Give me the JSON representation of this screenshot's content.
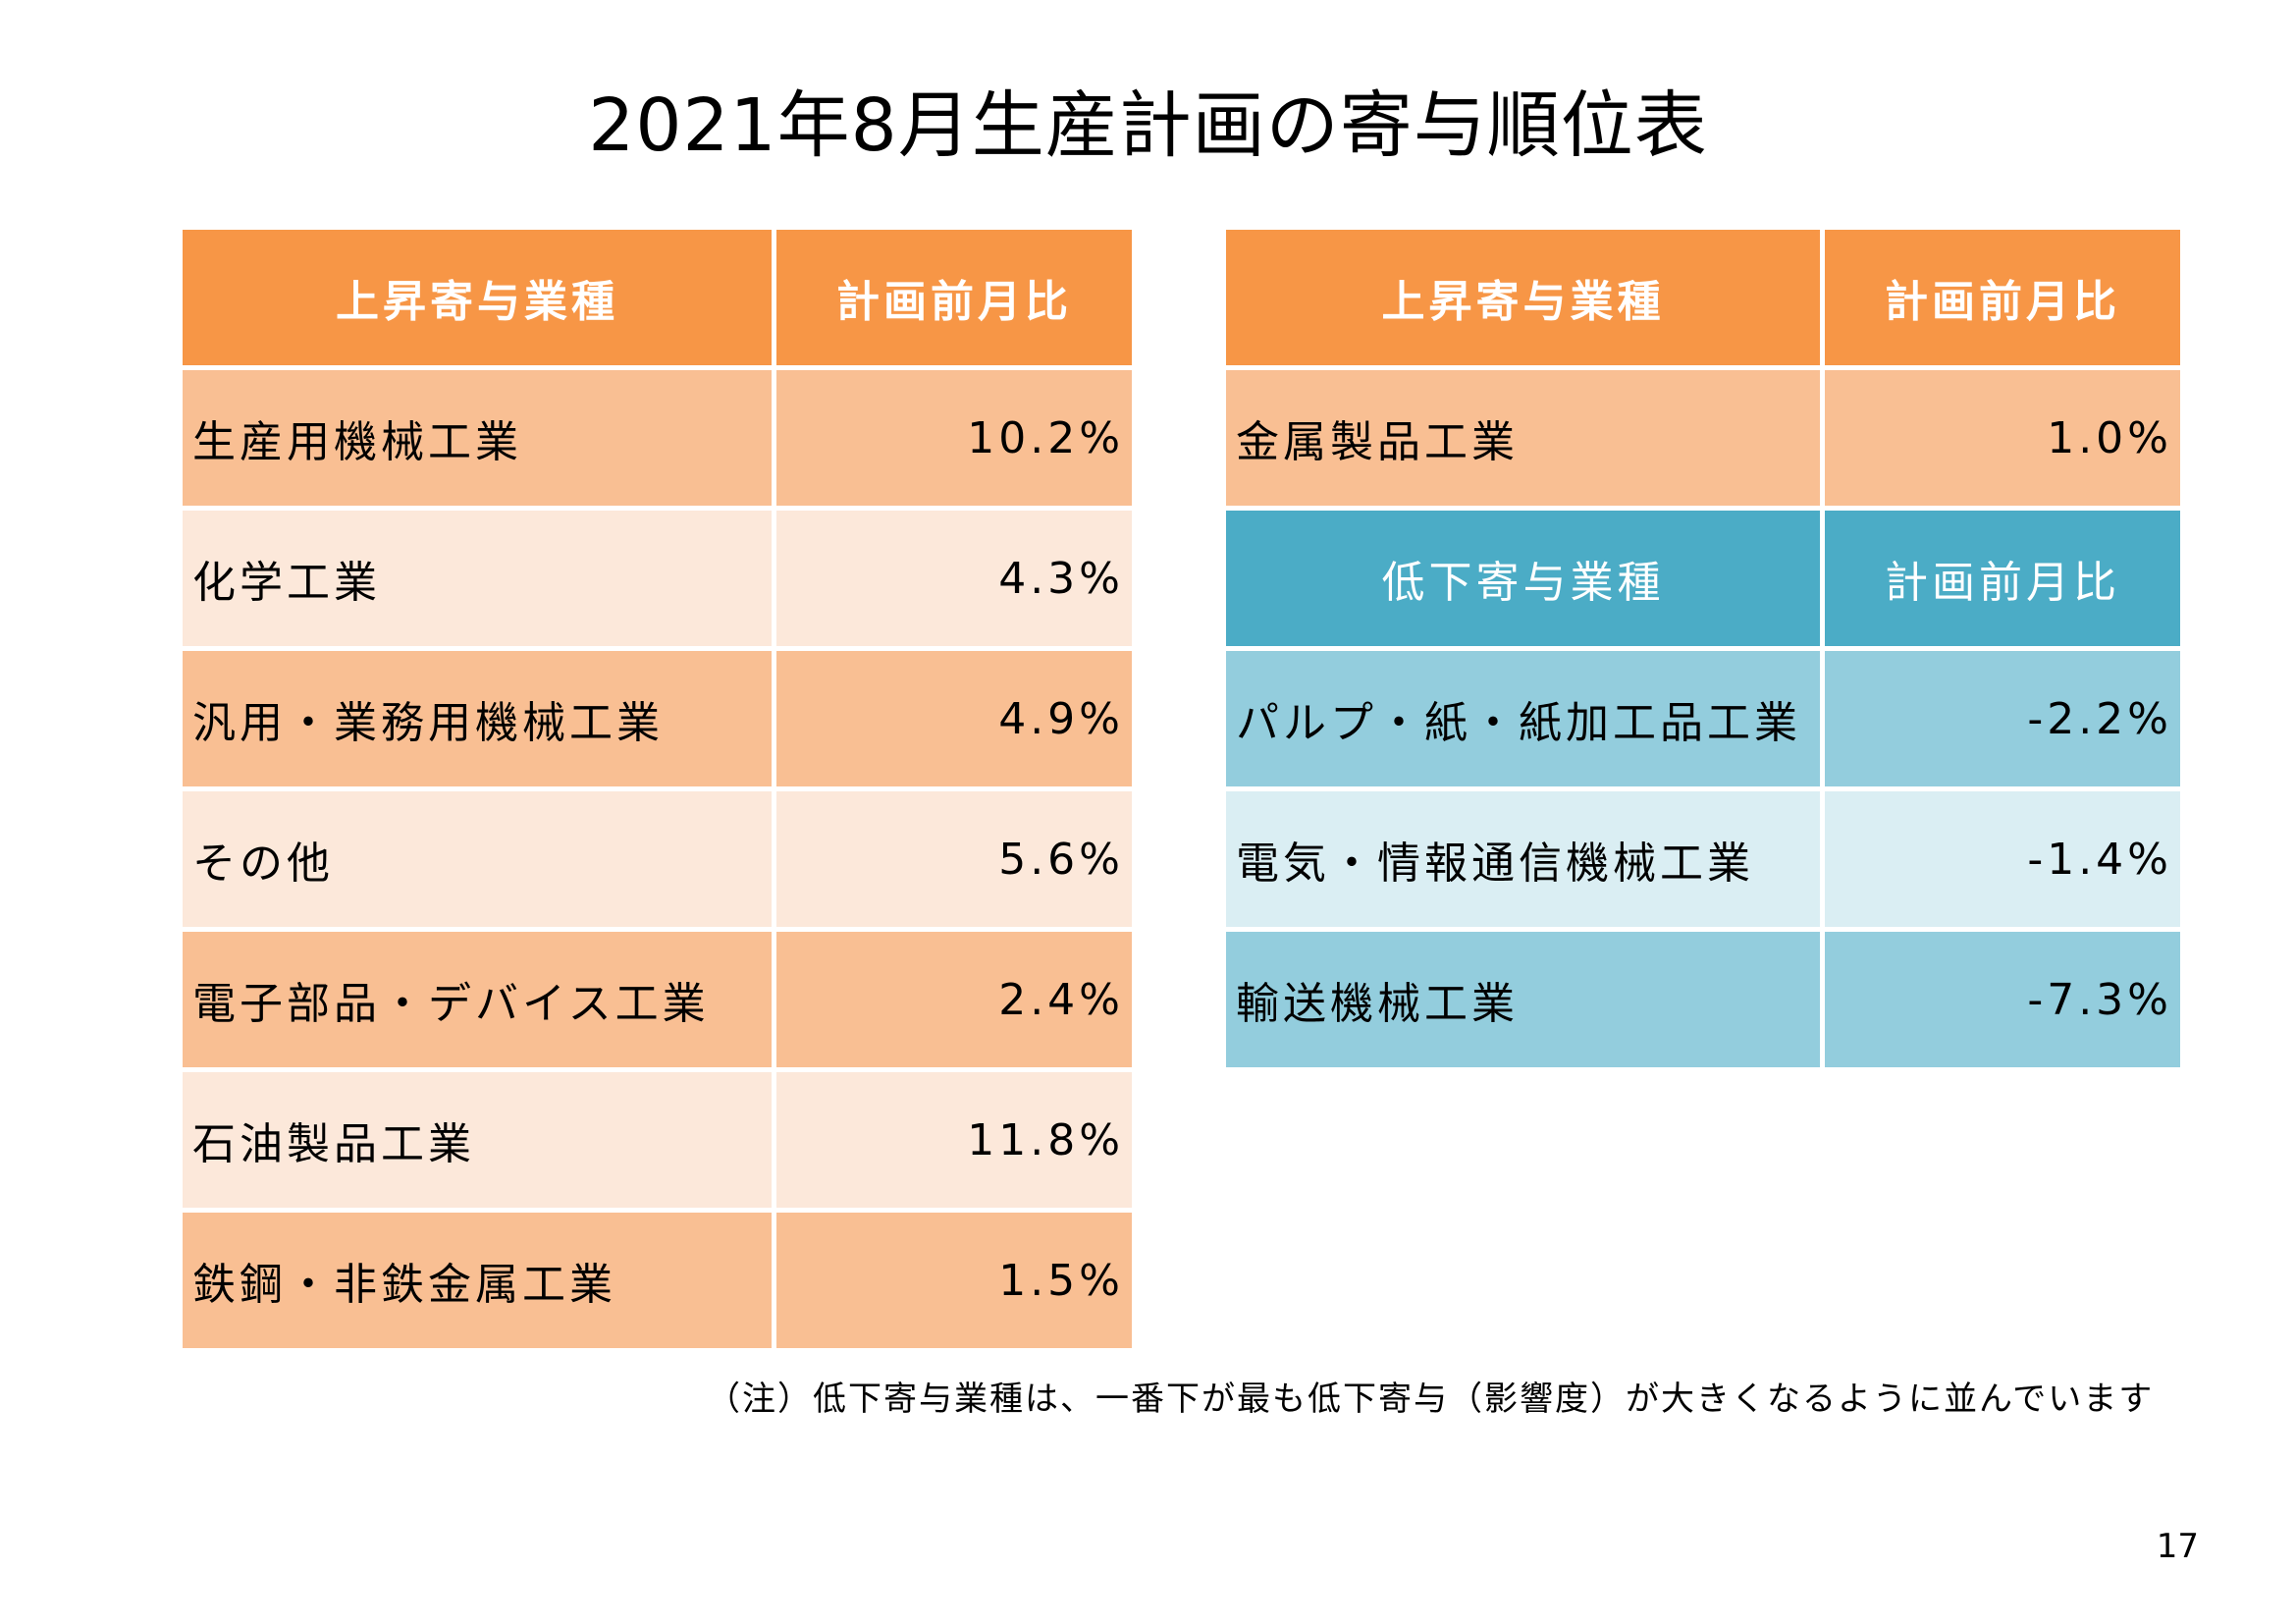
{
  "title": "2021年8月生産計画の寄与順位表",
  "left_table": {
    "header": [
      "上昇寄与業種",
      "計画前月比"
    ],
    "rows": [
      [
        "生産用機械工業",
        "10.2%"
      ],
      [
        "化学工業",
        "4.3%"
      ],
      [
        "汎用・業務用機械工業",
        "4.9%"
      ],
      [
        "その他",
        "5.6%"
      ],
      [
        "電子部品・デバイス工業",
        "2.4%"
      ],
      [
        "石油製品工業",
        "11.8%"
      ],
      [
        "鉄鋼・非鉄金属工業",
        "1.5%"
      ]
    ]
  },
  "right_table": {
    "header_up": [
      "上昇寄与業種",
      "計画前月比"
    ],
    "rows_up": [
      [
        "金属製品工業",
        "1.0%"
      ]
    ],
    "header_down": [
      "低下寄与業種",
      "計画前月比"
    ],
    "rows_down": [
      [
        "パルプ・紙・紙加工品工業",
        "-2.2%"
      ],
      [
        "電気・情報通信機械工業",
        "-1.4%"
      ],
      [
        "輸送機械工業",
        "-7.3%"
      ]
    ]
  },
  "note": "（注）低下寄与業種は、一番下が最も低下寄与（影響度）が大きくなるように並んでいます",
  "page_number": "17",
  "colors": {
    "orange_header": "#f79646",
    "orange_dark": "#f9bf93",
    "orange_light": "#fce8da",
    "blue_header": "#4bacc6",
    "blue_dark": "#93cddd",
    "blue_light": "#daeef3"
  }
}
